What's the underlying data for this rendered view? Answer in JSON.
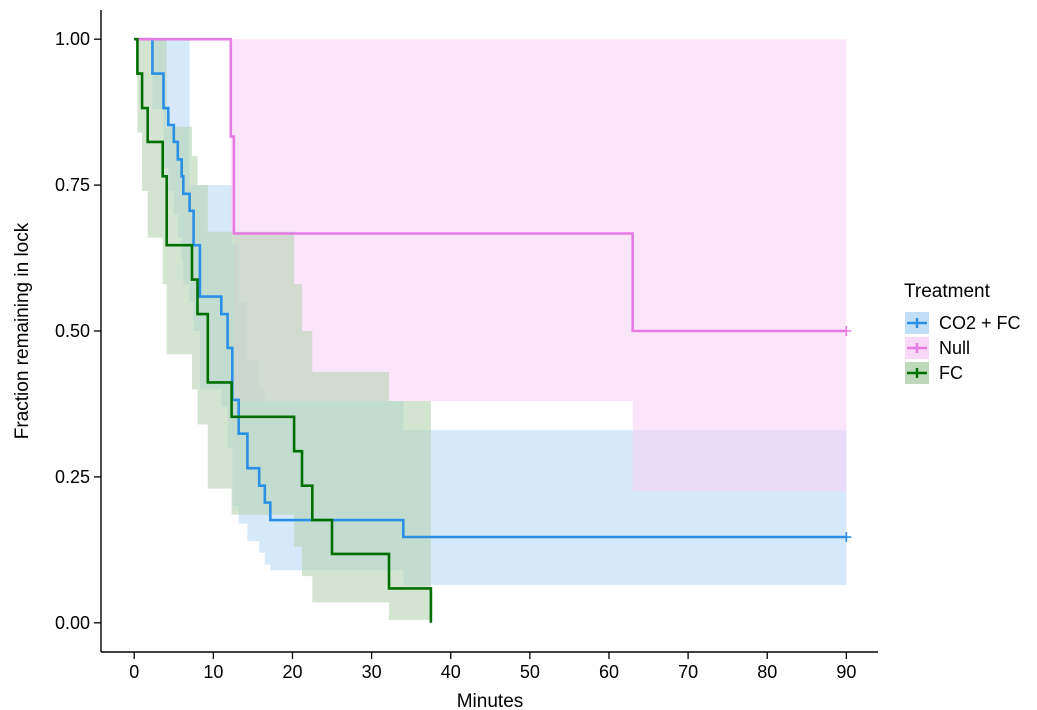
{
  "chart_data": {
    "type": "line",
    "subtype": "kaplan-meier survival curve with confidence bands",
    "title": "",
    "xlabel": "Minutes",
    "ylabel": "Fraction remaining in lock",
    "xlim": [
      -4.2,
      94
    ],
    "ylim": [
      -0.05,
      1.05
    ],
    "xticks": [
      "0",
      "10",
      "20",
      "30",
      "40",
      "50",
      "60",
      "70",
      "80",
      "90"
    ],
    "yticks": [
      "0.00",
      "0.25",
      "0.50",
      "0.75",
      "1.00"
    ],
    "grid": false,
    "legend": {
      "title": "Treatment",
      "position": "right",
      "entries": [
        "CO2 + FC",
        "Null",
        "FC"
      ]
    },
    "series": [
      {
        "name": "CO2 + FC",
        "color": "#2C8FE6",
        "band_color": "#B9DAF6",
        "times": [
          0,
          2.3,
          3.7,
          4.3,
          5,
          5.5,
          6,
          6.2,
          7,
          7.5,
          8.3,
          11,
          11.8,
          12.4,
          13.2,
          14.3,
          15.8,
          16.5,
          17.2,
          34,
          90
        ],
        "surv": [
          1,
          0.941,
          0.882,
          0.853,
          0.824,
          0.794,
          0.765,
          0.735,
          0.706,
          0.647,
          0.559,
          0.529,
          0.471,
          0.382,
          0.324,
          0.265,
          0.235,
          0.206,
          0.176,
          0.147,
          0.147
        ],
        "upper": [
          1,
          1,
          1,
          1,
          1,
          1,
          1,
          1,
          0.75,
          0.75,
          0.75,
          0.75,
          0.75,
          0.65,
          0.55,
          0.45,
          0.4,
          0.38,
          0.38,
          0.33,
          0.33
        ],
        "lower": [
          1,
          0.88,
          0.78,
          0.74,
          0.7,
          0.66,
          0.62,
          0.58,
          0.55,
          0.5,
          0.4,
          0.37,
          0.3,
          0.2,
          0.17,
          0.14,
          0.12,
          0.1,
          0.09,
          0.065,
          0.065
        ],
        "censored": [
          [
            90,
            0.147
          ]
        ]
      },
      {
        "name": "Null",
        "color": "#E57BE3",
        "band_color": "#F9D4F6",
        "times": [
          0,
          12.2,
          12.6,
          63,
          90
        ],
        "surv": [
          1,
          0.833,
          0.667,
          0.5,
          0.5
        ],
        "upper": [
          1,
          1,
          1,
          1,
          1
        ],
        "lower": [
          1,
          0.67,
          0.38,
          0.225,
          0.225
        ],
        "censored": [
          [
            90,
            0.5
          ]
        ]
      },
      {
        "name": "FC",
        "color": "#006F00",
        "band_color": "#B6D4B3",
        "times": [
          0,
          0.4,
          1,
          1.7,
          3.6,
          4.1,
          7.3,
          8,
          9.3,
          12.3,
          20.2,
          21.2,
          22.5,
          25,
          32.2,
          37.5
        ],
        "surv": [
          1,
          0.941,
          0.882,
          0.824,
          0.765,
          0.647,
          0.588,
          0.529,
          0.412,
          0.353,
          0.294,
          0.235,
          0.176,
          0.118,
          0.059,
          0
        ],
        "upper": [
          1,
          1,
          1,
          1,
          1,
          0.85,
          0.8,
          0.75,
          0.67,
          0.67,
          0.58,
          0.5,
          0.43,
          0.43,
          0.38,
          0.38
        ],
        "lower": [
          1,
          0.84,
          0.74,
          0.66,
          0.58,
          0.46,
          0.4,
          0.34,
          0.23,
          0.185,
          0.13,
          0.08,
          0.035,
          0.035,
          0.005,
          0.005
        ],
        "censored": []
      }
    ]
  }
}
